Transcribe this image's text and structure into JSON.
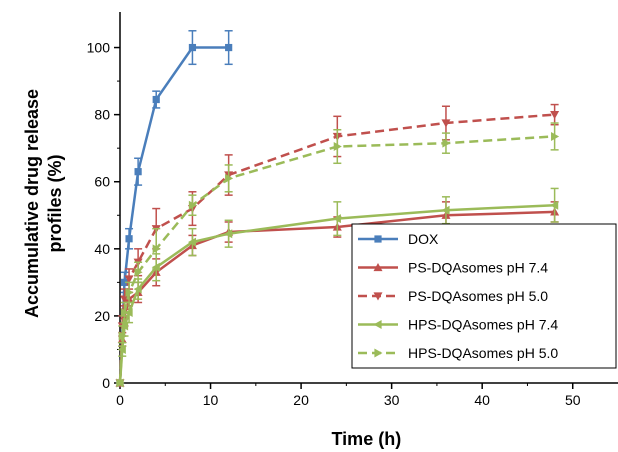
{
  "chart_data": {
    "type": "line",
    "xlabel": "Time (h)",
    "ylabel_lines": [
      "Accumulative drug release",
      "profiles (%)"
    ],
    "xlim": [
      0,
      55
    ],
    "ylim": [
      0,
      110
    ],
    "xticks": [
      0,
      10,
      20,
      30,
      40,
      50
    ],
    "yticks": [
      0,
      20,
      40,
      60,
      80,
      100
    ],
    "grid": false,
    "legend_position": "bottom-right",
    "series": [
      {
        "name": "DOX",
        "color": "#4a7ebb",
        "dash": "solid",
        "marker": "square",
        "x": [
          0,
          0.5,
          1,
          2,
          4,
          8,
          12
        ],
        "y": [
          0,
          30,
          43,
          63,
          84.5,
          100,
          100
        ],
        "err": [
          0,
          3,
          3,
          4,
          2.5,
          5,
          5
        ]
      },
      {
        "name": "PS-DQAsomes pH 7.4",
        "color": "#c0504d",
        "dash": "solid",
        "marker": "triangle-up",
        "x": [
          0,
          0.25,
          0.5,
          1,
          2,
          4,
          8,
          12,
          24,
          36,
          48
        ],
        "y": [
          0,
          13,
          20,
          25,
          27,
          33,
          41,
          45,
          46.5,
          50,
          51
        ],
        "err": [
          0,
          2,
          3,
          2,
          3,
          4,
          3,
          3,
          3,
          4,
          3
        ]
      },
      {
        "name": "PS-DQAsomes pH 5.0",
        "color": "#c0504d",
        "dash": "dashed",
        "marker": "triangle-down",
        "x": [
          0,
          0.25,
          0.5,
          1,
          2,
          4,
          8,
          12,
          24,
          36,
          48
        ],
        "y": [
          0,
          17,
          25,
          31,
          36,
          46,
          52,
          62,
          73.5,
          77.5,
          80
        ],
        "err": [
          0,
          3,
          3,
          3,
          4,
          6,
          5,
          6,
          6,
          5,
          3
        ]
      },
      {
        "name": "HPS-DQAsomes pH 7.4",
        "color": "#9bbb59",
        "dash": "solid",
        "marker": "triangle-left",
        "x": [
          0,
          0.25,
          0.5,
          1,
          2,
          4,
          8,
          12,
          24,
          36,
          48
        ],
        "y": [
          0,
          10,
          17,
          21,
          28,
          34.5,
          42,
          44.5,
          49,
          51.5,
          53
        ],
        "err": [
          0,
          2,
          3,
          3,
          3,
          4,
          4,
          4,
          5,
          4,
          5
        ]
      },
      {
        "name": "HPS-DQAsomes pH 5.0",
        "color": "#9bbb59",
        "dash": "dashed",
        "marker": "triangle-right",
        "x": [
          0,
          0.25,
          0.5,
          1,
          2,
          4,
          8,
          12,
          24,
          36,
          48
        ],
        "y": [
          0,
          14,
          21,
          27,
          33,
          40,
          53,
          61,
          70.5,
          71.5,
          73.5
        ],
        "err": [
          0,
          3,
          3,
          3,
          3,
          6,
          3,
          4,
          5,
          3,
          4
        ]
      }
    ]
  }
}
